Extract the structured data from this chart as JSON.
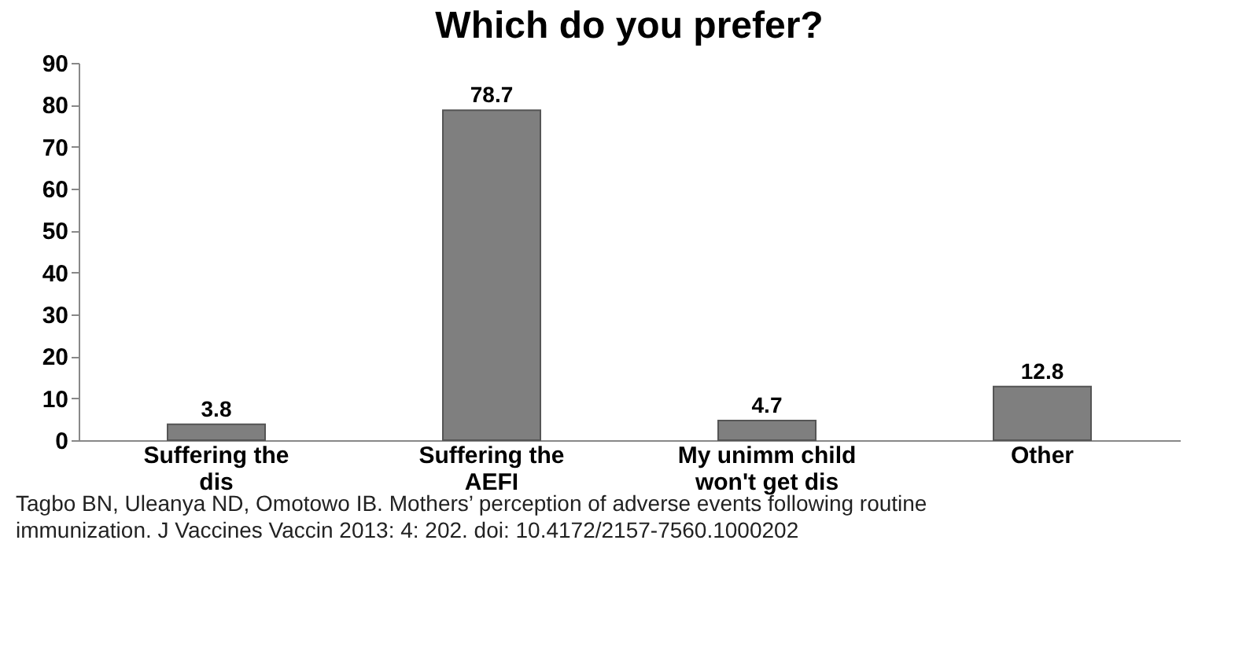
{
  "chart_data": {
    "type": "bar",
    "title": "Which do you prefer?",
    "categories": [
      "Suffering the dis",
      "Suffering the AEFI",
      "My unimm child won't get dis",
      "Other"
    ],
    "values": [
      3.8,
      78.7,
      4.7,
      12.8
    ],
    "color": "#7f7f7f",
    "ylim": [
      0,
      90
    ],
    "yticks": [
      0,
      10,
      20,
      30,
      40,
      50,
      60,
      70,
      80,
      90
    ],
    "grid": false,
    "data_labels": true,
    "annotations": [
      "Tagbo BN, Uleanya ND, Omotowo IB. Mothers’ perception of adverse events following routine immunization. J Vaccines Vaccin 2013: 4: 202. doi: 10.4172/2157-7560.1000202"
    ]
  }
}
